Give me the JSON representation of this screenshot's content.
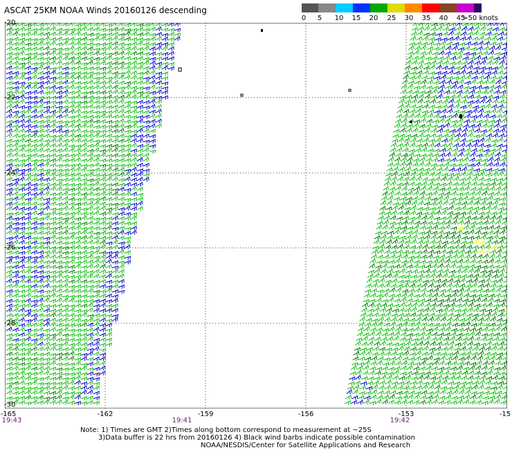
{
  "title": "ASCAT 25KM NOAA Winds 20160126 descending",
  "legend": {
    "labels": [
      "0",
      "5",
      "10",
      "15",
      "20",
      "25",
      "30",
      "35",
      "40",
      "45",
      ">50 knots"
    ],
    "colors": [
      "#555555",
      "#888888",
      "#00ccff",
      "#0033ff",
      "#00aa00",
      "#dddd00",
      "#ff8800",
      "#ff0000",
      "#884422",
      "#cc00cc",
      "#330066"
    ]
  },
  "x_ticks": [
    "-165",
    "-162",
    "-159",
    "-156",
    "-153",
    "-15"
  ],
  "y_ticks": [
    "-20",
    "-22",
    "-24",
    "-26",
    "-28",
    "-30"
  ],
  "pass_times": [
    "19:43",
    "19:41",
    "19:42"
  ],
  "notes": {
    "line1": "Note: 1) Times are GMT 2)Times along bottom correspond to measurement at ~25S",
    "line2": "3)Data buffer is 22 hrs from 20160126 4) Black wind barbs indicate possible contamination",
    "line3": "NOAA/NESDIS/Center for Satellite Applications and Research"
  },
  "barb_colors": {
    "blue": "#0000cc",
    "green": "#11bb11",
    "darkgreen": "#007700",
    "yellow": "#eeee00"
  }
}
